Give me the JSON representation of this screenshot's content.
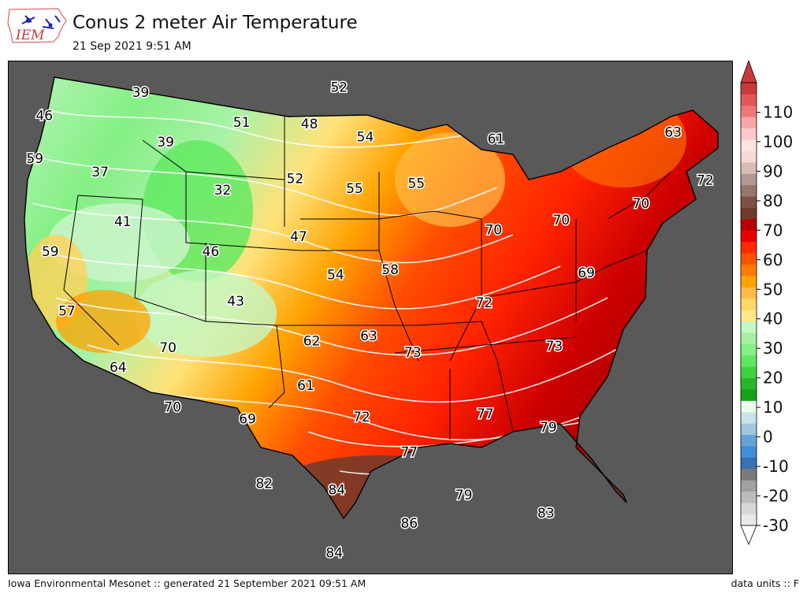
{
  "header": {
    "title": "Conus 2 meter Air Temperature",
    "subtitle": "21 Sep 2021 9:51 AM",
    "logo_text": "IEM"
  },
  "footer": {
    "left": "Iowa Environmental Mesonet :: generated 21 September 2021 09:51 AM",
    "right": "data units :: F"
  },
  "colorbar": {
    "tick_labels": [
      "110",
      "100",
      "90",
      "80",
      "70",
      "60",
      "50",
      "40",
      "30",
      "20",
      "10",
      "0",
      "-10",
      "-20",
      "-30"
    ],
    "tick_values": [
      110,
      100,
      90,
      80,
      70,
      60,
      50,
      40,
      30,
      20,
      10,
      0,
      -10,
      -20,
      -30
    ],
    "range": [
      -30,
      120
    ],
    "colors": [
      "#e9e9e9",
      "#d8d8d8",
      "#bcbcbc",
      "#a1a1a1",
      "#7a7a7a",
      "#3a6fb2",
      "#3e8fd6",
      "#66a3d2",
      "#9fc6df",
      "#c8e4e8",
      "#eafcee",
      "#17a117",
      "#2bb52b",
      "#3fd23f",
      "#5fe85f",
      "#85f085",
      "#a6f0a6",
      "#c4f7c4",
      "#ffe88a",
      "#ffd766",
      "#ffbd47",
      "#ffa200",
      "#ff7b00",
      "#ff5500",
      "#ff2a00",
      "#e80000",
      "#b70000",
      "#6d3b2b",
      "#7d5146",
      "#96766d",
      "#b09a93",
      "#d9bdb2",
      "#f6d9d4",
      "#ffe2e2",
      "#ffc9c9",
      "#f7a6a6",
      "#ee7878",
      "#e15858",
      "#c83a3a"
    ]
  },
  "map_labels": [
    {
      "text": "46",
      "lon": -123.5,
      "lat": 47.2
    },
    {
      "text": "39",
      "lon": -115.4,
      "lat": 48.6
    },
    {
      "text": "52",
      "lon": -98.7,
      "lat": 48.9
    },
    {
      "text": "59",
      "lon": -124.3,
      "lat": 44.6
    },
    {
      "text": "39",
      "lon": -113.3,
      "lat": 45.6
    },
    {
      "text": "51",
      "lon": -106.9,
      "lat": 46.8
    },
    {
      "text": "48",
      "lon": -101.2,
      "lat": 46.7
    },
    {
      "text": "37",
      "lon": -118.8,
      "lat": 43.8
    },
    {
      "text": "54",
      "lon": -96.5,
      "lat": 45.9
    },
    {
      "text": "61",
      "lon": -85.5,
      "lat": 45.8
    },
    {
      "text": "63",
      "lon": -70.6,
      "lat": 46.2
    },
    {
      "text": "32",
      "lon": -108.5,
      "lat": 42.7
    },
    {
      "text": "52",
      "lon": -102.4,
      "lat": 43.4
    },
    {
      "text": "55",
      "lon": -97.4,
      "lat": 42.8
    },
    {
      "text": "55",
      "lon": -92.2,
      "lat": 43.1
    },
    {
      "text": "72",
      "lon": -67.9,
      "lat": 43.3
    },
    {
      "text": "41",
      "lon": -116.9,
      "lat": 40.8
    },
    {
      "text": "59",
      "lon": -123.0,
      "lat": 39.0
    },
    {
      "text": "47",
      "lon": -102.1,
      "lat": 39.9
    },
    {
      "text": "46",
      "lon": -109.5,
      "lat": 39.0
    },
    {
      "text": "70",
      "lon": -85.7,
      "lat": 40.3
    },
    {
      "text": "70",
      "lon": -80.0,
      "lat": 40.9
    },
    {
      "text": "70",
      "lon": -73.3,
      "lat": 41.9
    },
    {
      "text": "54",
      "lon": -99.0,
      "lat": 37.6
    },
    {
      "text": "58",
      "lon": -94.4,
      "lat": 37.9
    },
    {
      "text": "69",
      "lon": -77.9,
      "lat": 37.7
    },
    {
      "text": "57",
      "lon": -121.6,
      "lat": 35.4
    },
    {
      "text": "43",
      "lon": -107.4,
      "lat": 36.0
    },
    {
      "text": "72",
      "lon": -86.5,
      "lat": 35.9
    },
    {
      "text": "62",
      "lon": -101.0,
      "lat": 33.6
    },
    {
      "text": "63",
      "lon": -96.2,
      "lat": 33.9
    },
    {
      "text": "70",
      "lon": -113.1,
      "lat": 33.2
    },
    {
      "text": "73",
      "lon": -92.5,
      "lat": 32.9
    },
    {
      "text": "73",
      "lon": -80.6,
      "lat": 33.3
    },
    {
      "text": "64",
      "lon": -117.3,
      "lat": 32.0
    },
    {
      "text": "61",
      "lon": -101.5,
      "lat": 30.9
    },
    {
      "text": "70",
      "lon": -112.7,
      "lat": 29.6
    },
    {
      "text": "69",
      "lon": -106.4,
      "lat": 28.9
    },
    {
      "text": "72",
      "lon": -96.8,
      "lat": 29.0
    },
    {
      "text": "77",
      "lon": -86.4,
      "lat": 29.2
    },
    {
      "text": "79",
      "lon": -81.1,
      "lat": 28.4
    },
    {
      "text": "77",
      "lon": -92.8,
      "lat": 26.9
    },
    {
      "text": "82",
      "lon": -105.0,
      "lat": 25.0
    },
    {
      "text": "84",
      "lon": -98.9,
      "lat": 24.6
    },
    {
      "text": "79",
      "lon": -88.2,
      "lat": 24.3
    },
    {
      "text": "86",
      "lon": -92.8,
      "lat": 22.6
    },
    {
      "text": "83",
      "lon": -81.3,
      "lat": 23.2
    },
    {
      "text": "84",
      "lon": -99.1,
      "lat": 20.8
    }
  ]
}
